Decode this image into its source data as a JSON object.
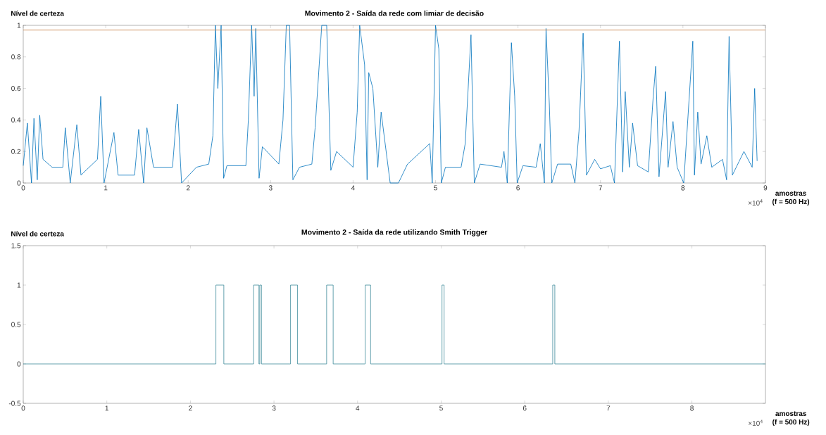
{
  "chart_data": [
    {
      "type": "line",
      "title": "Movimento 2 - Saída da rede com limiar de decisão",
      "ylabel": "Nível de certeza",
      "xlabel": "amostras (f = 500 Hz)",
      "annotations": [
        "×10$^{4}$"
      ],
      "xlim": [
        0,
        9
      ],
      "ylim": [
        0,
        1
      ],
      "xticks": [
        0,
        1,
        2,
        3,
        4,
        5,
        6,
        7,
        8,
        9
      ],
      "yticks": [
        0,
        0.2,
        0.4,
        0.6,
        0.8,
        1
      ],
      "ref_lines": [
        {
          "axis": "y",
          "value": 0.97,
          "color": "#c8834a"
        }
      ],
      "series": [
        {
          "color": "#0072bd",
          "x": [
            0,
            0.05,
            0.1,
            0.13,
            0.17,
            0.2,
            0.24,
            0.35,
            0.48,
            0.51,
            0.57,
            0.65,
            0.7,
            0.9,
            0.94,
            0.98,
            1.1,
            1.15,
            1.35,
            1.4,
            1.46,
            1.5,
            1.58,
            1.81,
            1.87,
            1.92,
            2.1,
            2.25,
            2.3,
            2.33,
            2.36,
            2.4,
            2.43,
            2.47,
            2.7,
            2.73,
            2.77,
            2.8,
            2.82,
            2.86,
            2.9,
            3.1,
            3.15,
            3.19,
            3.23,
            3.27,
            3.35,
            3.5,
            3.54,
            3.62,
            3.68,
            3.73,
            3.8,
            4.0,
            4.05,
            4.08,
            4.14,
            4.17,
            4.19,
            4.24,
            4.3,
            4.34,
            4.45,
            4.55,
            4.66,
            4.93,
            4.96,
            5.0,
            5.04,
            5.07,
            5.12,
            5.31,
            5.36,
            5.43,
            5.47,
            5.54,
            5.8,
            5.83,
            5.87,
            5.92,
            5.96,
            5.99,
            6.06,
            6.22,
            6.27,
            6.32,
            6.34,
            6.38,
            6.41,
            6.48,
            6.64,
            6.69,
            6.74,
            6.79,
            6.83,
            6.93,
            7.0,
            7.12,
            7.17,
            7.23,
            7.27,
            7.3,
            7.35,
            7.39,
            7.45,
            7.58,
            7.64,
            7.67,
            7.71,
            7.79,
            7.82,
            7.88,
            7.93,
            8.01,
            8.12,
            8.14,
            8.18,
            8.22,
            8.29,
            8.35,
            8.48,
            8.53,
            8.56,
            8.6,
            8.74,
            8.84,
            8.87,
            8.9
          ],
          "values": [
            0.11,
            0.38,
            0.0,
            0.41,
            0.02,
            0.43,
            0.15,
            0.1,
            0.1,
            0.35,
            0.0,
            0.37,
            0.05,
            0.15,
            0.55,
            0.0,
            0.32,
            0.05,
            0.05,
            0.34,
            0.0,
            0.35,
            0.1,
            0.1,
            0.5,
            0.0,
            0.1,
            0.12,
            0.3,
            1.0,
            0.6,
            1.0,
            0.03,
            0.11,
            0.11,
            0.4,
            1.0,
            0.55,
            0.98,
            0.03,
            0.23,
            0.12,
            0.4,
            1.0,
            1.0,
            0.02,
            0.1,
            0.12,
            0.35,
            1.0,
            1.0,
            0.08,
            0.2,
            0.1,
            0.45,
            1.0,
            0.75,
            0.02,
            0.7,
            0.6,
            0.1,
            0.45,
            0.0,
            0.0,
            0.12,
            0.25,
            0.0,
            1.0,
            0.85,
            0.0,
            0.1,
            0.1,
            0.25,
            0.94,
            0.0,
            0.12,
            0.1,
            0.2,
            0.0,
            0.89,
            0.55,
            0.0,
            0.11,
            0.1,
            0.25,
            0.0,
            0.98,
            0.5,
            0.0,
            0.12,
            0.12,
            0.0,
            0.33,
            0.95,
            0.05,
            0.15,
            0.09,
            0.11,
            0.0,
            0.9,
            0.07,
            0.58,
            0.1,
            0.38,
            0.11,
            0.07,
            0.55,
            0.74,
            0.04,
            0.58,
            0.1,
            0.39,
            0.1,
            0.0,
            0.9,
            0.05,
            0.45,
            0.12,
            0.3,
            0.1,
            0.15,
            0.02,
            0.93,
            0.05,
            0.2,
            0.1,
            0.6,
            0.14
          ]
        }
      ]
    },
    {
      "type": "step",
      "title": "Movimento 2 - Saída da rede utilizando Smith Trigger",
      "ylabel": "Nível de certeza",
      "xlabel": "amostras (f = 500 Hz)",
      "annotations": [
        "×10$^{4}$"
      ],
      "xlim": [
        0,
        8.88
      ],
      "ylim": [
        -0.5,
        1.5
      ],
      "xticks": [
        0,
        1,
        2,
        3,
        4,
        5,
        6,
        7,
        8
      ],
      "yticks": [
        -0.5,
        0,
        0.5,
        1,
        1.5
      ],
      "series": [
        {
          "color": "#3d8a9a",
          "x": [
            0,
            2.305,
            2.4,
            2.756,
            2.82,
            2.83,
            2.85,
            3.198,
            3.282,
            3.63,
            3.708,
            4.091,
            4.156,
            5.01,
            5.035,
            6.335,
            6.36,
            8.88
          ],
          "values": [
            0,
            1,
            0,
            1,
            0,
            1,
            0,
            1,
            0,
            1,
            0,
            1,
            0,
            1,
            0,
            1,
            0,
            0
          ]
        }
      ]
    }
  ]
}
